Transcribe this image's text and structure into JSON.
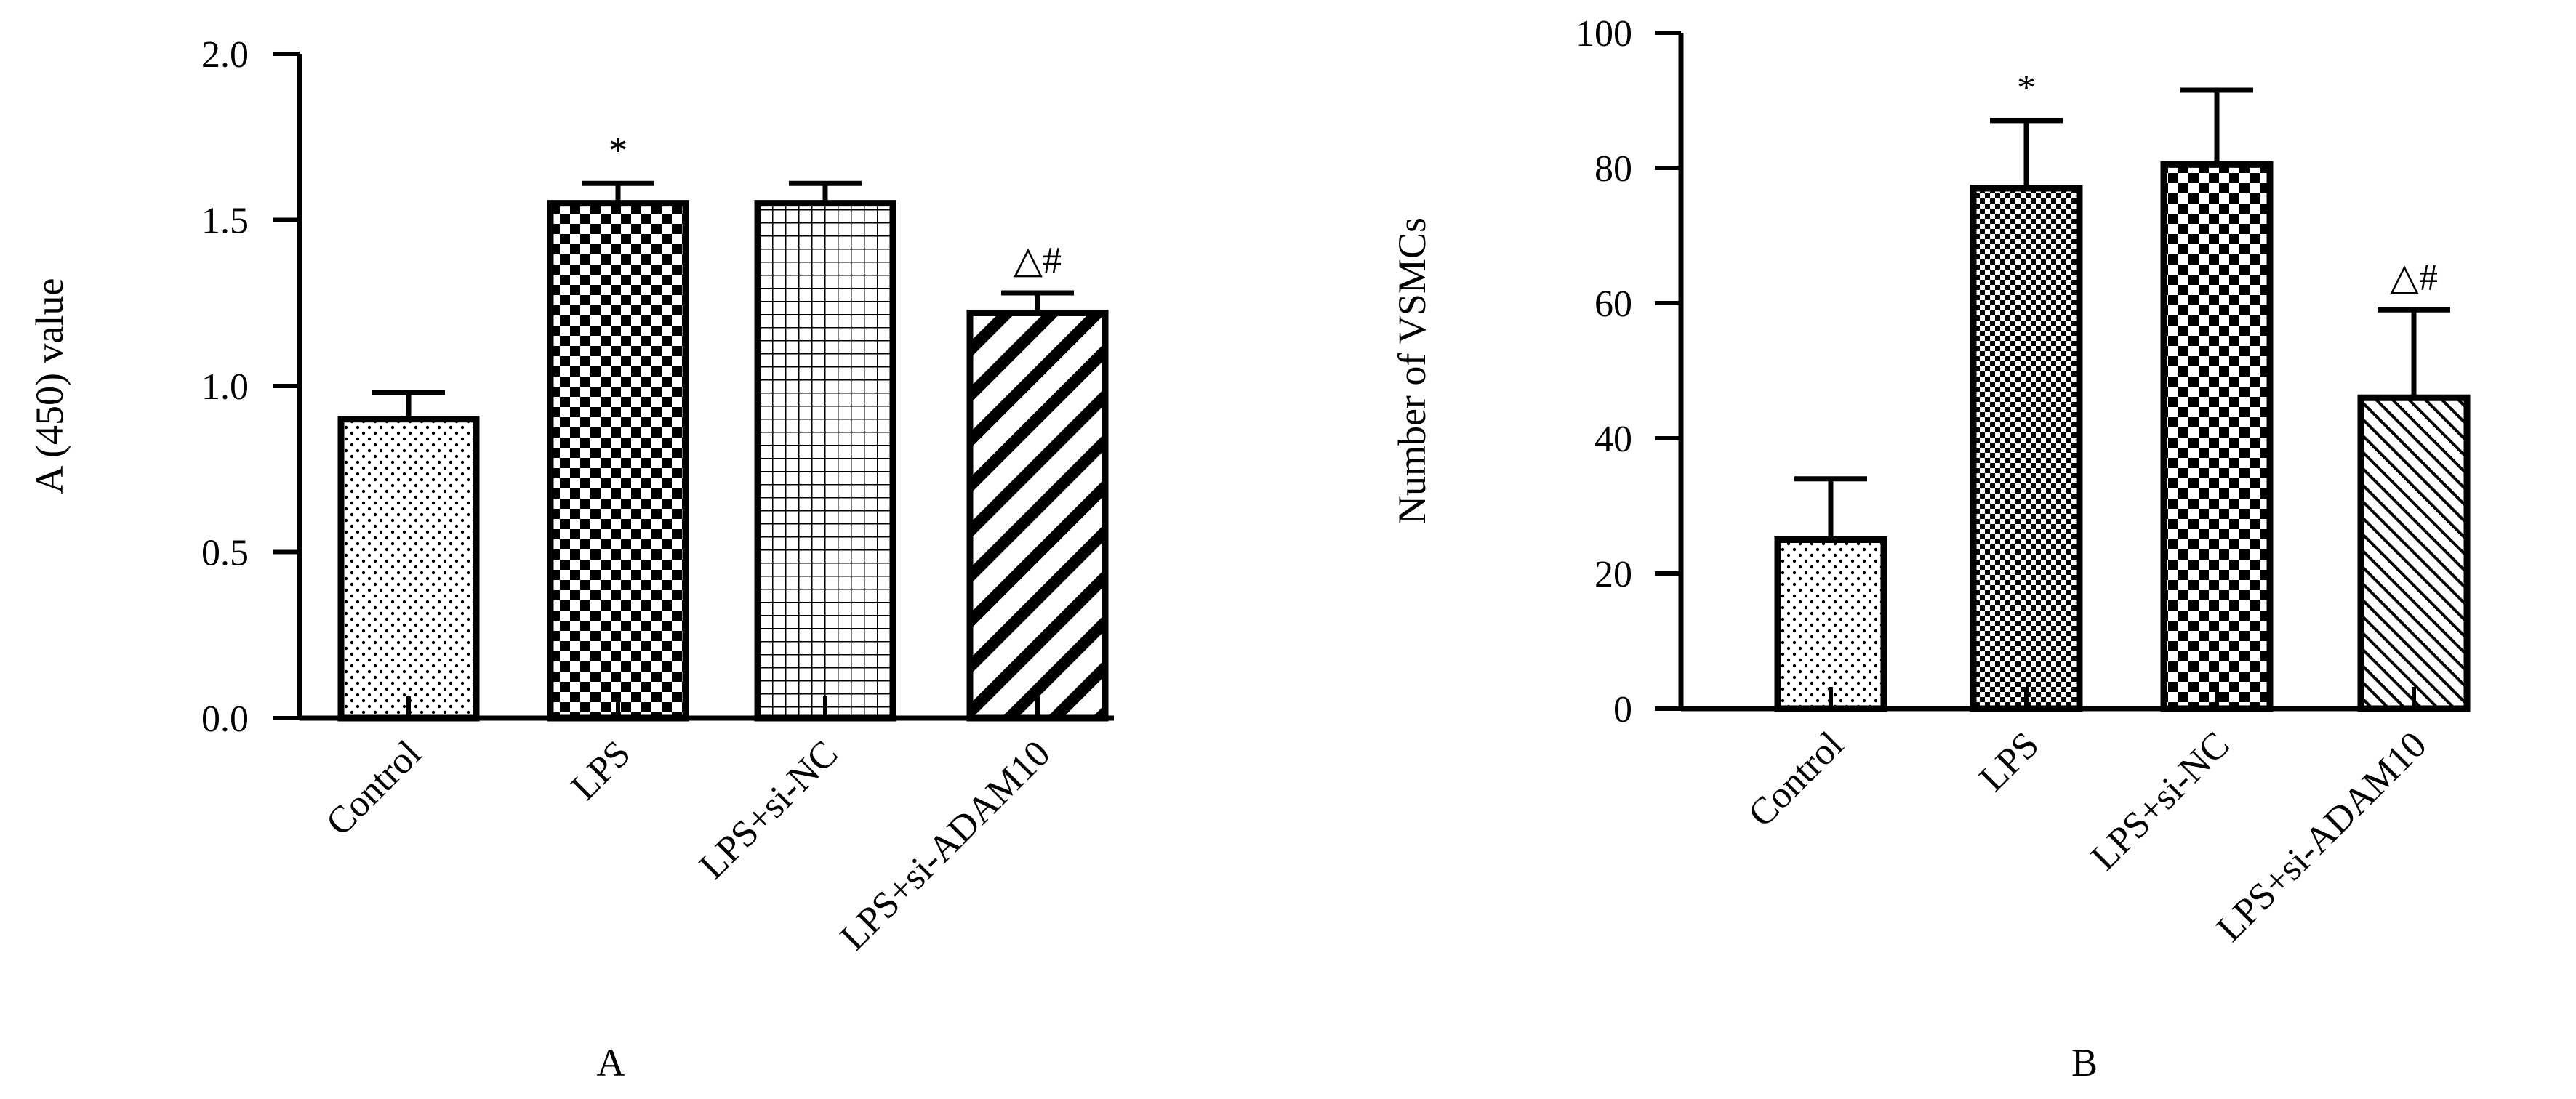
{
  "chart_data": [
    {
      "type": "bar",
      "panel_label": "A",
      "ylabel": "A (450) value",
      "categories": [
        "Control",
        "LPS",
        "LPS+si-NC",
        "LPS+si-ADAM10"
      ],
      "values": [
        0.9,
        1.55,
        1.55,
        1.22
      ],
      "errors": [
        0.08,
        0.06,
        0.06,
        0.06
      ],
      "annotations": [
        "",
        "*",
        "",
        "△#"
      ],
      "patterns": [
        "dots",
        "checker",
        "grid",
        "diagonal-wide"
      ],
      "ylim": [
        0,
        2.0
      ],
      "yticks": [
        "0.0",
        "0.5",
        "1.0",
        "1.5",
        "2.0"
      ],
      "ytick_values": [
        0,
        0.5,
        1.0,
        1.5,
        2.0
      ],
      "grid": false
    },
    {
      "type": "bar",
      "panel_label": "B",
      "ylabel": "Number of  VSMCs",
      "categories": [
        "Control",
        "LPS",
        "LPS+si-NC",
        "LPS+si-ADAM10"
      ],
      "values": [
        25,
        77,
        80.5,
        46
      ],
      "errors": [
        9,
        10,
        11,
        13
      ],
      "annotations": [
        "",
        "*",
        "",
        "△#"
      ],
      "patterns": [
        "dots",
        "fine-checker",
        "checker",
        "diagonal-fine"
      ],
      "ylim": [
        0,
        100
      ],
      "yticks": [
        "0",
        "20",
        "40",
        "60",
        "80",
        "100"
      ],
      "ytick_values": [
        0,
        20,
        40,
        60,
        80,
        100
      ],
      "grid": false
    }
  ]
}
